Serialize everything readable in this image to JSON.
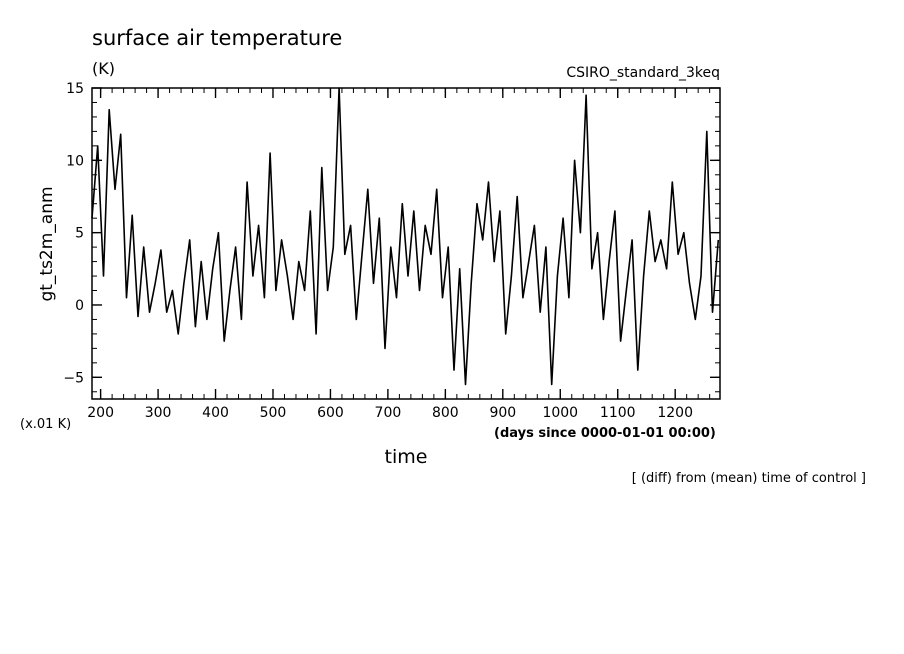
{
  "chart_data": {
    "type": "line",
    "title": "surface air temperature",
    "units_label": "(K)",
    "run_label": "CSIRO_standard_3keq",
    "ylabel": "gt_ts2m_anm",
    "xlabel": "time",
    "y_scale_note": "(x.01 K)",
    "x_units_note": "(days since 0000-01-01 00:00)",
    "footnote": "[ (diff) from (mean) time of control ]",
    "xlim": [
      185,
      1278
    ],
    "ylim": [
      -6.5,
      15
    ],
    "x_ticks": [
      200,
      300,
      400,
      500,
      600,
      700,
      800,
      900,
      1000,
      1100,
      1200
    ],
    "x_tick_labels": [
      "200",
      "300",
      "400",
      "500",
      "600",
      "700",
      "800",
      "900",
      "1000",
      "1100",
      "1200"
    ],
    "y_ticks": [
      -5,
      0,
      5,
      10,
      15
    ],
    "y_tick_labels": [
      "−5",
      "0",
      "5",
      "10",
      "15"
    ],
    "series": [
      {
        "x": [
          185,
          195,
          205,
          215,
          225,
          235,
          245,
          255,
          265,
          275,
          285,
          295,
          305,
          315,
          325,
          335,
          345,
          355,
          365,
          375,
          385,
          395,
          405,
          415,
          425,
          435,
          445,
          455,
          465,
          475,
          485,
          495,
          505,
          515,
          525,
          535,
          545,
          555,
          565,
          575,
          585,
          595,
          605,
          615,
          625,
          635,
          645,
          655,
          665,
          675,
          685,
          695,
          705,
          715,
          725,
          735,
          745,
          755,
          765,
          775,
          785,
          795,
          805,
          815,
          825,
          835,
          845,
          855,
          865,
          875,
          885,
          895,
          905,
          915,
          925,
          935,
          945,
          955,
          965,
          975,
          985,
          995,
          1005,
          1015,
          1025,
          1035,
          1045,
          1055,
          1065,
          1075,
          1085,
          1095,
          1105,
          1115,
          1125,
          1135,
          1145,
          1155,
          1165,
          1175,
          1185,
          1195,
          1205,
          1215,
          1225,
          1235,
          1245,
          1255,
          1265,
          1275
        ],
        "y": [
          6.0,
          11.0,
          2.0,
          13.5,
          8.0,
          11.8,
          0.5,
          6.2,
          -0.8,
          4.0,
          -0.5,
          1.5,
          3.8,
          -0.5,
          1.0,
          -2.0,
          1.5,
          4.5,
          -1.5,
          3.0,
          -1.0,
          2.5,
          5.0,
          -2.5,
          1.0,
          4.0,
          -1.0,
          8.5,
          2.0,
          5.5,
          0.5,
          10.5,
          1.0,
          4.5,
          2.0,
          -1.0,
          3.0,
          1.0,
          6.5,
          -2.0,
          9.5,
          1.0,
          4.0,
          15.0,
          3.5,
          5.5,
          -1.0,
          3.5,
          8.0,
          1.5,
          6.0,
          -3.0,
          4.0,
          0.5,
          7.0,
          2.0,
          6.5,
          1.0,
          5.5,
          3.5,
          8.0,
          0.5,
          4.0,
          -4.5,
          2.5,
          -5.5,
          1.5,
          7.0,
          4.5,
          8.5,
          3.0,
          6.5,
          -2.0,
          2.0,
          7.5,
          0.5,
          3.0,
          5.5,
          -0.5,
          4.0,
          -5.5,
          2.0,
          6.0,
          0.5,
          10.0,
          5.0,
          14.5,
          2.5,
          5.0,
          -1.0,
          3.0,
          6.5,
          -2.5,
          1.0,
          4.5,
          -4.5,
          2.0,
          6.5,
          3.0,
          4.5,
          2.5,
          8.5,
          3.5,
          5.0,
          1.5,
          -1.0,
          2.0,
          12.0,
          -0.5,
          4.5
        ]
      }
    ]
  }
}
